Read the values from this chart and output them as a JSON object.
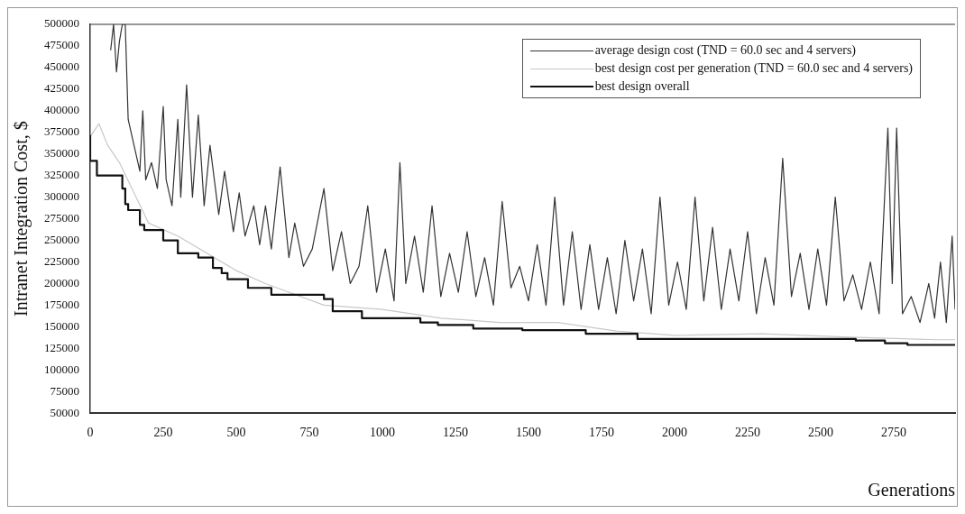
{
  "chart_data": {
    "type": "line",
    "xlabel": "Generations",
    "ylabel": "Intranet Integration Cost, $",
    "xlim": [
      0,
      2960
    ],
    "xticks": [
      0,
      250,
      500,
      750,
      1000,
      1250,
      1500,
      1750,
      2000,
      2250,
      2500,
      2750
    ],
    "ylim": [
      50000,
      500000
    ],
    "yticks": [
      50000,
      75000,
      100000,
      125000,
      150000,
      175000,
      200000,
      225000,
      250000,
      275000,
      300000,
      325000,
      350000,
      375000,
      400000,
      425000,
      450000,
      475000,
      500000
    ],
    "grid": false,
    "legend": "top right",
    "marker": "none",
    "line_style": "solid",
    "series": [
      {
        "name": "average design cost (TND = 60.0 sec and 4 servers)",
        "color": "#333333",
        "x": [
          70,
          80,
          90,
          100,
          110,
          120,
          130,
          150,
          170,
          180,
          190,
          210,
          230,
          250,
          260,
          280,
          300,
          310,
          330,
          350,
          370,
          390,
          410,
          440,
          460,
          490,
          510,
          530,
          560,
          580,
          600,
          620,
          650,
          680,
          700,
          730,
          760,
          800,
          830,
          860,
          890,
          920,
          950,
          980,
          1010,
          1040,
          1060,
          1080,
          1110,
          1140,
          1170,
          1200,
          1230,
          1260,
          1290,
          1320,
          1350,
          1380,
          1410,
          1440,
          1470,
          1500,
          1530,
          1560,
          1590,
          1620,
          1650,
          1680,
          1710,
          1740,
          1770,
          1800,
          1830,
          1860,
          1890,
          1920,
          1950,
          1980,
          2010,
          2040,
          2070,
          2100,
          2130,
          2160,
          2190,
          2220,
          2250,
          2280,
          2310,
          2340,
          2370,
          2400,
          2430,
          2460,
          2490,
          2520,
          2550,
          2580,
          2610,
          2640,
          2670,
          2700,
          2730,
          2745,
          2760,
          2780,
          2810,
          2840,
          2870,
          2890,
          2910,
          2930,
          2950,
          2960
        ],
        "values": [
          470000,
          500000,
          445000,
          480000,
          500000,
          500000,
          390000,
          360000,
          330000,
          400000,
          320000,
          340000,
          310000,
          405000,
          320000,
          290000,
          390000,
          300000,
          430000,
          300000,
          395000,
          290000,
          360000,
          280000,
          330000,
          260000,
          305000,
          255000,
          290000,
          245000,
          290000,
          240000,
          335000,
          230000,
          270000,
          220000,
          240000,
          310000,
          215000,
          260000,
          200000,
          220000,
          290000,
          190000,
          240000,
          180000,
          340000,
          200000,
          255000,
          190000,
          290000,
          185000,
          235000,
          190000,
          260000,
          185000,
          230000,
          175000,
          295000,
          195000,
          220000,
          180000,
          245000,
          175000,
          300000,
          175000,
          260000,
          170000,
          245000,
          170000,
          230000,
          165000,
          250000,
          180000,
          240000,
          165000,
          300000,
          175000,
          225000,
          170000,
          300000,
          180000,
          265000,
          170000,
          240000,
          180000,
          260000,
          165000,
          230000,
          175000,
          345000,
          185000,
          235000,
          170000,
          240000,
          175000,
          300000,
          180000,
          210000,
          170000,
          225000,
          165000,
          380000,
          200000,
          380000,
          165000,
          185000,
          155000,
          200000,
          160000,
          225000,
          155000,
          255000,
          170000
        ]
      },
      {
        "name": "best design cost per generation (TND = 60.0 sec and 4 servers)",
        "color": "#c8c8c8",
        "x": [
          0,
          30,
          60,
          100,
          200,
          300,
          500,
          600,
          800,
          1000,
          1200,
          1400,
          1600,
          1800,
          2000,
          2300,
          2600,
          2900,
          2960
        ],
        "values": [
          370000,
          385000,
          360000,
          340000,
          270000,
          255000,
          215000,
          200000,
          175000,
          170000,
          160000,
          155000,
          155000,
          145000,
          140000,
          142000,
          138000,
          135000,
          135000
        ]
      },
      {
        "name": "best design overall",
        "type": "step",
        "color": "#111111",
        "x": [
          0,
          23,
          110,
          120,
          130,
          170,
          185,
          250,
          300,
          370,
          420,
          450,
          470,
          540,
          620,
          800,
          830,
          930,
          1130,
          1190,
          1311,
          1479,
          1696,
          1873,
          2620,
          2720,
          2797,
          2960
        ],
        "values": [
          372000,
          342000,
          325000,
          310000,
          292000,
          285000,
          268000,
          262000,
          250000,
          235000,
          230000,
          218000,
          212000,
          205000,
          195000,
          187000,
          182000,
          168000,
          160000,
          155000,
          152000,
          148000,
          146000,
          142000,
          136000,
          134000,
          131000,
          129000
        ]
      }
    ]
  }
}
